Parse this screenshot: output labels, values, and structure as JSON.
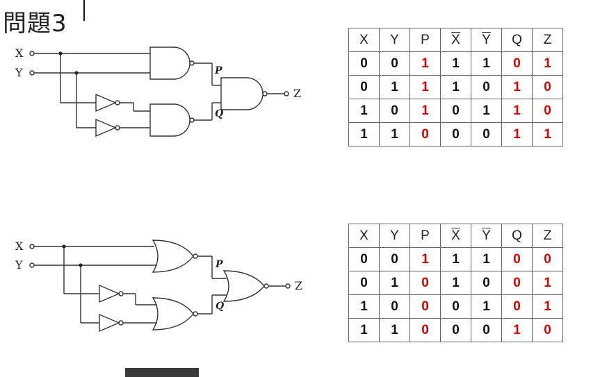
{
  "title": "問題3",
  "top_fragment": "",
  "circuits": [
    {
      "inputs": [
        "X",
        "Y"
      ],
      "intermediates": [
        "P",
        "Q"
      ],
      "output": "Z",
      "gate_type": "NAND",
      "table": {
        "headers": [
          "X",
          "Y",
          "P",
          "X",
          "Y",
          "Q",
          "Z"
        ],
        "overlined": [
          false,
          false,
          false,
          true,
          true,
          false,
          false
        ],
        "rows": [
          [
            "0",
            "0",
            "1",
            "1",
            "1",
            "0",
            "1"
          ],
          [
            "0",
            "1",
            "1",
            "1",
            "0",
            "1",
            "0"
          ],
          [
            "1",
            "0",
            "1",
            "0",
            "1",
            "1",
            "0"
          ],
          [
            "1",
            "1",
            "0",
            "0",
            "0",
            "1",
            "1"
          ]
        ]
      }
    },
    {
      "inputs": [
        "X",
        "Y"
      ],
      "intermediates": [
        "P",
        "Q"
      ],
      "output": "Z",
      "gate_type": "NOR",
      "table": {
        "headers": [
          "X",
          "Y",
          "P",
          "X",
          "Y",
          "Q",
          "Z"
        ],
        "overlined": [
          false,
          false,
          false,
          true,
          true,
          false,
          false
        ],
        "rows": [
          [
            "0",
            "0",
            "1",
            "1",
            "1",
            "0",
            "0"
          ],
          [
            "0",
            "1",
            "0",
            "1",
            "0",
            "0",
            "1"
          ],
          [
            "1",
            "0",
            "0",
            "0",
            "1",
            "0",
            "1"
          ],
          [
            "1",
            "1",
            "0",
            "0",
            "0",
            "1",
            "0"
          ]
        ]
      }
    }
  ],
  "red_columns": [
    2,
    5,
    6
  ],
  "colors": {
    "highlight": "#d80000",
    "line": "#333333"
  }
}
